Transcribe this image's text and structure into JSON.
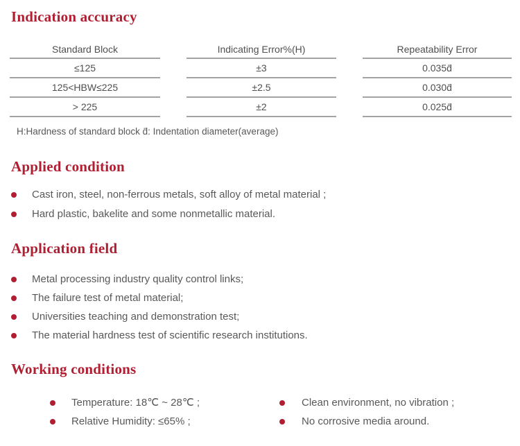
{
  "colors": {
    "accent": "#b01e32",
    "body_text": "#58585a",
    "table_line": "#a3a3a3"
  },
  "indication": {
    "title": "Indication accuracy",
    "table": {
      "headers": [
        "Standard Block",
        "Indicating Error%(H)",
        "Repeatability Error"
      ],
      "rows": [
        [
          "≤125",
          "±3",
          "0.035d̄"
        ],
        [
          "125<HBW≤225",
          "±2.5",
          "0.030d̄"
        ],
        [
          "> 225",
          "±2",
          "0.025d̄"
        ]
      ]
    },
    "note": "H:Hardness of standard block  d̄: Indentation diameter(average)"
  },
  "applied": {
    "title": "Applied condition",
    "items": [
      "Cast iron, steel, non-ferrous metals, soft alloy of metal material ;",
      "Hard plastic, bakelite and some nonmetallic material."
    ]
  },
  "application": {
    "title": "Application field",
    "items": [
      "Metal processing industry quality control links;",
      "The failure test of metal material;",
      "Universities teaching and demonstration test;",
      "The material hardness test of scientific research institutions."
    ]
  },
  "working": {
    "title": "Working conditions",
    "left_items": [
      "Temperature:  18℃ ~ 28℃ ;",
      "Relative Humidity:  ≤65% ;"
    ],
    "right_items": [
      "Clean environment, no vibration ;",
      "No corrosive media around."
    ]
  }
}
